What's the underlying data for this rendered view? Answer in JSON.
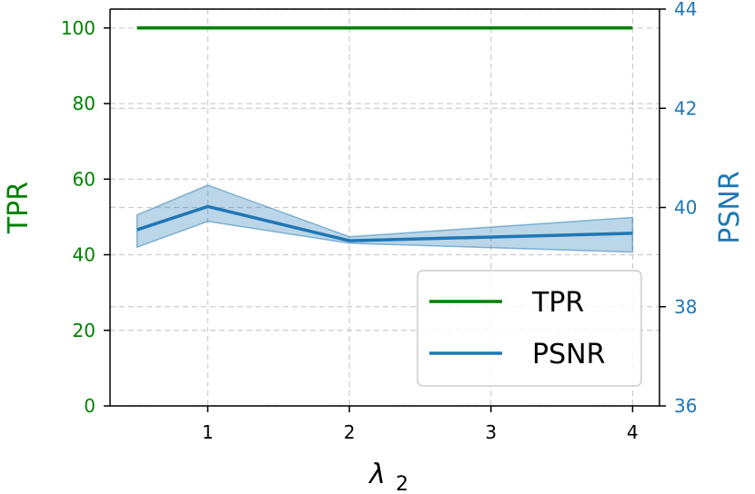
{
  "chart_data": {
    "type": "line",
    "x": [
      0.5,
      1,
      2,
      4
    ],
    "xticks": [
      "1",
      "2",
      "3",
      "4"
    ],
    "xtick_values": [
      1,
      2,
      3,
      4
    ],
    "xlabel": "λ",
    "xlabel_sub": "2",
    "xlim": [
      0.31,
      4.19
    ],
    "left_axis": {
      "label": "TPR",
      "color": "#008000",
      "ylim": [
        0,
        105
      ],
      "ticks": [
        "0",
        "20",
        "40",
        "60",
        "80",
        "100"
      ],
      "tick_values": [
        0,
        20,
        40,
        60,
        80,
        100
      ]
    },
    "right_axis": {
      "label": "PSNR",
      "color": "#1f77b4",
      "ylim": [
        36,
        44
      ],
      "ticks": [
        "36",
        "38",
        "40",
        "42",
        "44"
      ],
      "tick_values": [
        36,
        38,
        40,
        42,
        44
      ]
    },
    "series": [
      {
        "name": "TPR",
        "axis": "left",
        "color": "#008000",
        "x": [
          0.5,
          1,
          2,
          4
        ],
        "values": [
          100,
          100,
          100,
          100
        ]
      },
      {
        "name": "PSNR",
        "axis": "right",
        "color": "#1f77b4",
        "x": [
          0.5,
          1,
          2,
          4
        ],
        "values": [
          39.55,
          40.02,
          39.33,
          39.48
        ],
        "band_low": [
          39.2,
          39.72,
          39.28,
          39.1
        ],
        "band_high": [
          39.85,
          40.45,
          39.41,
          39.8
        ]
      }
    ],
    "grid": true,
    "legend_position": "lower-right"
  }
}
